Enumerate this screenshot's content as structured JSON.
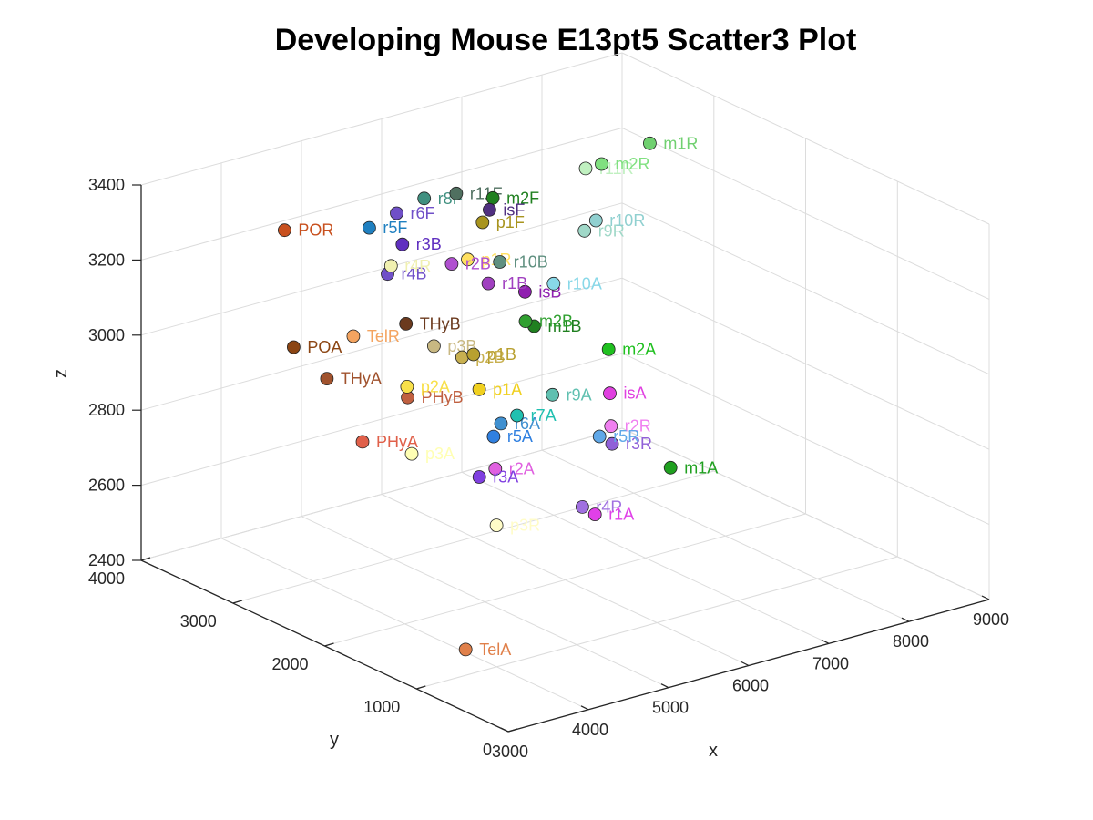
{
  "chart_data": {
    "type": "scatter",
    "title": "Developing Mouse E13pt5 Scatter3 Plot",
    "xlabel": "x",
    "ylabel": "y",
    "zlabel": "z",
    "xlim": [
      3000,
      9000
    ],
    "ylim": [
      0,
      4000
    ],
    "zlim": [
      2400,
      3400
    ],
    "xticks": [
      3000,
      4000,
      5000,
      6000,
      7000,
      8000,
      9000
    ],
    "yticks": [
      0,
      1000,
      2000,
      3000,
      4000
    ],
    "zticks": [
      2400,
      2600,
      2800,
      3000,
      3200,
      3400
    ],
    "grid": true,
    "points": [
      {
        "label": "POR",
        "x": 3300,
        "y": 2700,
        "z": 3410,
        "color": "#C8501E"
      },
      {
        "label": "TelR",
        "x": 3700,
        "y": 2300,
        "z": 3150,
        "color": "#F4A460"
      },
      {
        "label": "POA",
        "x": 3300,
        "y": 2600,
        "z": 3110,
        "color": "#8B4513"
      },
      {
        "label": "THyB",
        "x": 4700,
        "y": 2600,
        "z": 3090,
        "color": "#6B3A1E"
      },
      {
        "label": "THyA",
        "x": 3600,
        "y": 2500,
        "z": 3020,
        "color": "#A0522D"
      },
      {
        "label": "PHyA",
        "x": 3700,
        "y": 2200,
        "z": 2880,
        "color": "#E0604A"
      },
      {
        "label": "PHyB",
        "x": 4550,
        "y": 2450,
        "z": 2920,
        "color": "#C06040"
      },
      {
        "label": "TelA",
        "x": 4300,
        "y": 1600,
        "z": 2360,
        "color": "#E0804A"
      },
      {
        "label": "p3A",
        "x": 4200,
        "y": 2100,
        "z": 2830,
        "color": "#FFFFB4"
      },
      {
        "label": "p3B",
        "x": 5050,
        "y": 2600,
        "z": 3010,
        "color": "#C8B882"
      },
      {
        "label": "p3R",
        "x": 4800,
        "y": 1700,
        "z": 2650,
        "color": "#FFFCC8"
      },
      {
        "label": "p2A",
        "x": 4600,
        "y": 2500,
        "z": 2940,
        "color": "#F8E04A"
      },
      {
        "label": "p2B",
        "x": 5400,
        "y": 2600,
        "z": 2960,
        "color": "#C8B050"
      },
      {
        "label": "p1A",
        "x": 5500,
        "y": 2500,
        "z": 2880,
        "color": "#F0D020"
      },
      {
        "label": "p1B",
        "x": 5600,
        "y": 2650,
        "z": 2950,
        "color": "#B8A030"
      },
      {
        "label": "p1R",
        "x": 5700,
        "y": 2800,
        "z": 3180,
        "color": "#FFE060"
      },
      {
        "label": "p1F",
        "x": 6000,
        "y": 2900,
        "z": 3250,
        "color": "#A8941E"
      },
      {
        "label": "r2B",
        "x": 5500,
        "y": 2800,
        "z": 3180,
        "color": "#B050D0"
      },
      {
        "label": "r3B",
        "x": 5000,
        "y": 2900,
        "z": 3250,
        "color": "#6030C0"
      },
      {
        "label": "r4B",
        "x": 4700,
        "y": 2800,
        "z": 3200,
        "color": "#7050C8"
      },
      {
        "label": "r4R",
        "x": 4800,
        "y": 2850,
        "z": 3210,
        "color": "#F0F0B0"
      },
      {
        "label": "r5A",
        "x": 5450,
        "y": 2300,
        "z": 2780,
        "color": "#3080E0"
      },
      {
        "label": "r6A",
        "x": 5600,
        "y": 2350,
        "z": 2800,
        "color": "#4090D0"
      },
      {
        "label": "r7A",
        "x": 5800,
        "y": 2350,
        "z": 2810,
        "color": "#20C0B0"
      },
      {
        "label": "r9A",
        "x": 6300,
        "y": 2400,
        "z": 2830,
        "color": "#60C0B0"
      },
      {
        "label": "r5F",
        "x": 4700,
        "y": 3000,
        "z": 3300,
        "color": "#2080C0"
      },
      {
        "label": "r6F",
        "x": 5100,
        "y": 3050,
        "z": 3310,
        "color": "#7050C8"
      },
      {
        "label": "r8F",
        "x": 5500,
        "y": 3100,
        "z": 3320,
        "color": "#409080"
      },
      {
        "label": "r11F",
        "x": 5900,
        "y": 3100,
        "z": 3310,
        "color": "#507060"
      },
      {
        "label": "m2F",
        "x": 6300,
        "y": 3050,
        "z": 3280,
        "color": "#208020"
      },
      {
        "label": "isF",
        "x": 6200,
        "y": 3000,
        "z": 3260,
        "color": "#503080"
      },
      {
        "label": "m1B",
        "x": 6300,
        "y": 2600,
        "z": 2990,
        "color": "#208020"
      },
      {
        "label": "m2B",
        "x": 6250,
        "y": 2650,
        "z": 3000,
        "color": "#30A030"
      },
      {
        "label": "isB",
        "x": 6300,
        "y": 2700,
        "z": 3070,
        "color": "#9020B0"
      },
      {
        "label": "r1B",
        "x": 5900,
        "y": 2750,
        "z": 3110,
        "color": "#A040C0"
      },
      {
        "label": "r10B",
        "x": 6100,
        "y": 2800,
        "z": 3150,
        "color": "#609080"
      },
      {
        "label": "r10A",
        "x": 6600,
        "y": 2650,
        "z": 3080,
        "color": "#88D8E8"
      },
      {
        "label": "r9R",
        "x": 7100,
        "y": 2750,
        "z": 3180,
        "color": "#A0D8C8"
      },
      {
        "label": "r10R",
        "x": 7300,
        "y": 2800,
        "z": 3190,
        "color": "#90D0D0"
      },
      {
        "label": "r11R",
        "x": 7400,
        "y": 3000,
        "z": 3300,
        "color": "#C0F0C0"
      },
      {
        "label": "m2R",
        "x": 7600,
        "y": 3000,
        "z": 3300,
        "color": "#80E080"
      },
      {
        "label": "m1R",
        "x": 8200,
        "y": 3000,
        "z": 3320,
        "color": "#70D070"
      },
      {
        "label": "m2A",
        "x": 7000,
        "y": 2400,
        "z": 2910,
        "color": "#20C020"
      },
      {
        "label": "isA",
        "x": 6900,
        "y": 2300,
        "z": 2810,
        "color": "#E040E0"
      },
      {
        "label": "r2R",
        "x": 6800,
        "y": 2200,
        "z": 2740,
        "color": "#F080F0"
      },
      {
        "label": "r3R",
        "x": 6700,
        "y": 2100,
        "z": 2710,
        "color": "#9060D8"
      },
      {
        "label": "r5R",
        "x": 6600,
        "y": 2150,
        "z": 2730,
        "color": "#60A8E8"
      },
      {
        "label": "r2A",
        "x": 5300,
        "y": 2150,
        "z": 2720,
        "color": "#E060E0"
      },
      {
        "label": "r3A",
        "x": 5100,
        "y": 2150,
        "z": 2710,
        "color": "#8040E0"
      },
      {
        "label": "r4R",
        "x": 6100,
        "y": 1900,
        "z": 2600,
        "color": "#A070E0"
      },
      {
        "label": "r1A",
        "x": 6200,
        "y": 1850,
        "z": 2580,
        "color": "#E040E8"
      },
      {
        "label": "m1A",
        "x": 7200,
        "y": 1900,
        "z": 2640,
        "color": "#20A020"
      }
    ]
  }
}
